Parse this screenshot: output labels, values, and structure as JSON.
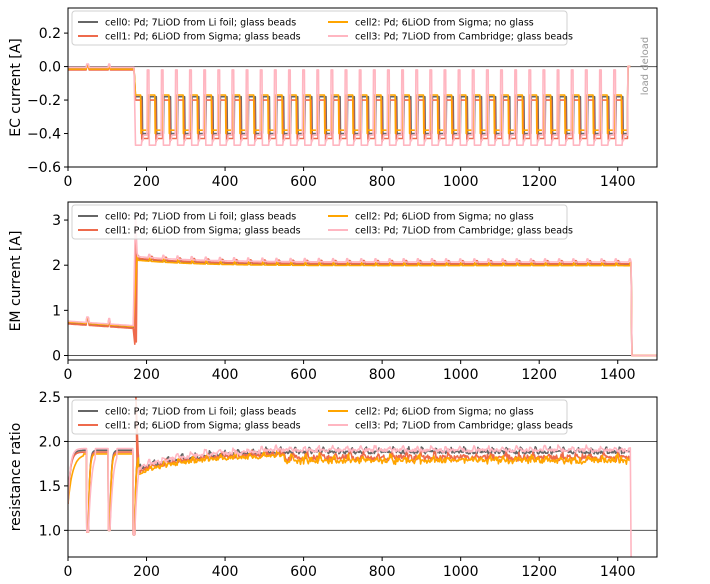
{
  "colors": {
    "cell0": "#666666",
    "cell1": "#ee6a4c",
    "cell2": "#ffa500",
    "cell3": "#ffb6c1",
    "hline": "#555555",
    "frame": "#000000"
  },
  "chart_data": [
    {
      "type": "line",
      "ylabel": "EC current [A]",
      "xlim": [
        0,
        1500
      ],
      "ylim": [
        -0.6,
        0.35
      ],
      "xticks": [
        "0",
        "200",
        "400",
        "600",
        "800",
        "1000",
        "1200",
        "1400"
      ],
      "xtick_values": [
        0,
        200,
        400,
        600,
        800,
        1000,
        1200,
        1400
      ],
      "yticks": [
        "−0.6",
        "−0.4",
        "−0.2",
        "0.0",
        "0.2"
      ],
      "ytick_values": [
        -0.6,
        -0.4,
        -0.2,
        0.0,
        0.2
      ],
      "hlines": [
        0.0
      ],
      "annotation": "load deload",
      "legend_placement": "upper-left",
      "series": [
        {
          "name": "cell0: Pd; 7LiOD from Li foil; glass beads",
          "color": "#666666",
          "profile": "ec",
          "base": -0.01,
          "high": -0.18,
          "low": -0.4
        },
        {
          "name": "cell1: Pd; 6LiOD from Sigma; glass beads",
          "color": "#ee6a4c",
          "profile": "ec",
          "base": -0.02,
          "high": -0.2,
          "low": -0.43
        },
        {
          "name": "cell2: Pd; 6LiOD from Sigma; no glass",
          "color": "#ffa500",
          "profile": "ec",
          "base": -0.015,
          "high": -0.17,
          "low": -0.38
        },
        {
          "name": "cell3: Pd; 7LiOD from Cambridge; glass beads",
          "color": "#ffb6c1",
          "profile": "ec",
          "base": -0.005,
          "high": -0.02,
          "low": -0.47
        }
      ]
    },
    {
      "type": "line",
      "ylabel": "EM current [A]",
      "xlim": [
        0,
        1500
      ],
      "ylim": [
        -0.1,
        3.4
      ],
      "xticks": [
        "0",
        "200",
        "400",
        "600",
        "800",
        "1000",
        "1200",
        "1400"
      ],
      "xtick_values": [
        0,
        200,
        400,
        600,
        800,
        1000,
        1200,
        1400
      ],
      "yticks": [
        "0",
        "1",
        "2",
        "3"
      ],
      "ytick_values": [
        0,
        1,
        2,
        3
      ],
      "hlines": [
        0.0
      ],
      "legend_placement": "upper-left",
      "series": [
        {
          "name": "cell0: Pd; 7LiOD from Li foil; glass beads",
          "color": "#666666",
          "profile": "em",
          "pre": 0.72,
          "post": 2.02
        },
        {
          "name": "cell1: Pd; 6LiOD from Sigma; glass beads",
          "color": "#ee6a4c",
          "profile": "em",
          "pre": 0.7,
          "post": 2.04
        },
        {
          "name": "cell2: Pd; 6LiOD from Sigma; no glass",
          "color": "#ffa500",
          "profile": "em",
          "pre": 0.74,
          "post": 2.0
        },
        {
          "name": "cell3: Pd; 7LiOD from Cambridge; glass beads",
          "color": "#ffb6c1",
          "profile": "em",
          "pre": 0.76,
          "post": 2.08
        }
      ]
    },
    {
      "type": "line",
      "ylabel": "resistance ratio",
      "xlim": [
        0,
        1500
      ],
      "ylim": [
        0.7,
        2.5
      ],
      "xticks": [
        "0",
        "200",
        "400",
        "600",
        "800",
        "1000",
        "1200",
        "1400"
      ],
      "xtick_values": [
        0,
        200,
        400,
        600,
        800,
        1000,
        1200,
        1400
      ],
      "yticks": [
        "1.0",
        "1.5",
        "2.0",
        "2.5"
      ],
      "ytick_values": [
        1.0,
        1.5,
        2.0,
        2.5
      ],
      "hlines": [
        1.0,
        2.0
      ],
      "legend_placement": "upper-left",
      "series": [
        {
          "name": "cell0: Pd; 7LiOD from Li foil; glass beads",
          "color": "#666666",
          "profile": "rr",
          "level": 1.9
        },
        {
          "name": "cell1: Pd; 6LiOD from Sigma; glass beads",
          "color": "#ee6a4c",
          "profile": "rr",
          "level": 1.88
        },
        {
          "name": "cell2: Pd; 6LiOD from Sigma; no glass",
          "color": "#ffa500",
          "profile": "rr",
          "level": 1.86
        },
        {
          "name": "cell3: Pd; 7LiOD from Cambridge; glass beads",
          "color": "#ffb6c1",
          "profile": "rr",
          "level": 1.92
        }
      ]
    }
  ]
}
